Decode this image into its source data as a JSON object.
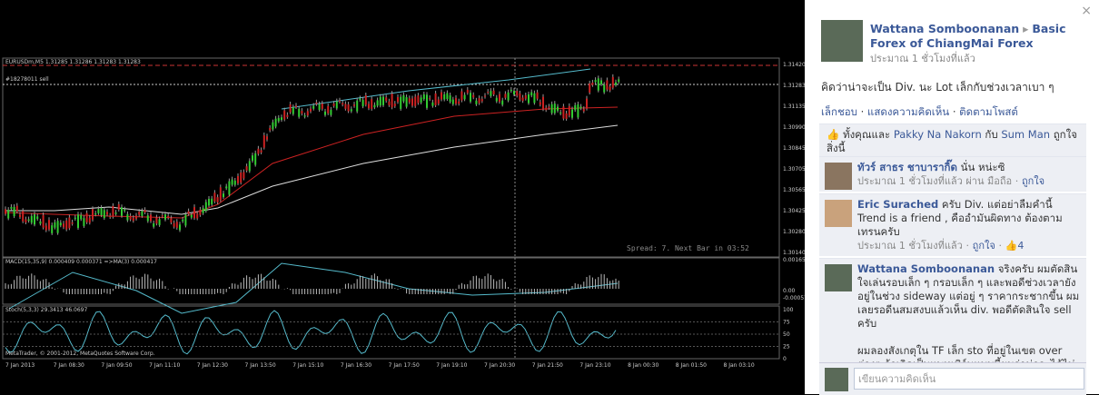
{
  "chart_image": {
    "header": "EURUSDm,M5  1.31285 1.31286 1.31283 1.31283",
    "order": "#18278011 sell",
    "price_labels": [
      "1.31420",
      "1.31283",
      "1.31135",
      "1.30990",
      "1.30845",
      "1.30705",
      "1.30565",
      "1.30425",
      "1.30280",
      "1.30140"
    ],
    "spread": "Spread: 7.  Next Bar in 03:52",
    "macd_label": "MACD(15,35,9) 0.000409 0.000371 =>MA(3) 0.000417",
    "macd_ticks": [
      "0.001659",
      "0.00",
      "-0.00057"
    ],
    "stoch_label": "Stoch(5,3,3) 29.3413 46.0697",
    "stoch_ticks": [
      "100",
      "75",
      "50",
      "25",
      "0"
    ],
    "copyright": "MetaTrader, © 2001-2012, MetaQuotes Software Corp.",
    "time_labels": [
      "7 Jan 2013",
      "7 Jan 08:30",
      "7 Jan 09:50",
      "7 Jan 11:10",
      "7 Jan 12:30",
      "7 Jan 13:50",
      "7 Jan 15:10",
      "7 Jan 16:30",
      "7 Jan 17:50",
      "7 Jan 19:10",
      "7 Jan 20:30",
      "7 Jan 21:50",
      "7 Jan 23:10",
      "8 Jan 00:30",
      "8 Jan 01:50",
      "8 Jan 03:10"
    ]
  },
  "post": {
    "author": "Wattana Somboonanan",
    "group": "Basic Forex of ChiangMai Forex",
    "time": "ประมาณ 1 ชั่วโมงที่แล้ว",
    "text": "คิดว่าน่าจะเป็น Div. นะ Lot เล็กกับช่วงเวลาเบา ๆ",
    "actions": [
      "เล็กชอบ",
      "แสดงความคิดเห็น",
      "ติดตามโพสต์"
    ],
    "likes": {
      "lead": "ทั้งคุณและ",
      "name1": "Pakky Na Nakorn",
      "joiner": "กับ",
      "name2": "Sum Man",
      "tail": "ถูกใจสิ่งนี้"
    }
  },
  "comments": [
    {
      "author": "ทัวร์ สาธร ชาบารากิ๊ด",
      "text": "นั่น หน่ะซิ",
      "time": "ประมาณ 1 ชั่วโมงที่แล้ว ผ่าน มือถือ",
      "like": "ถูกใจ"
    },
    {
      "author": "Eric Surached",
      "text": "ครับ Div. แต่อย่าลืมคำนี้ Trend is a friend , คืออำมันผิดทาง ต้องตามเทรนครับ",
      "time": "ประมาณ 1 ชั่วโมงที่แล้ว",
      "like": "ถูกใจ",
      "count": "4"
    },
    {
      "author": "Wattana Somboonanan",
      "text": "จริงครับ ผมตัดสินใจเล่นรอบเล็ก ๆ กรอบเล็ก ๆ และพอดีช่วงเวลายังอยู่ในช่วง sideway แต่อยู่ ๆ ราคากระชากขึ้น ผมเลยรอดีนสมสงบแล้วเห็น div. พอดีตัดสินใจ sell ครับ",
      "text2": "ผมลองสังเกตุใน TF เล็ก sto ที่อยู่ในเขต over ต่างๆ ถ้าเกิดเป็นแพทเทิร์นแบบนี้ผมว่าน่าจะได้ไม่มาก"
    }
  ],
  "composer": {
    "placeholder": "เขียนความคิดเห็น"
  },
  "close": "×"
}
